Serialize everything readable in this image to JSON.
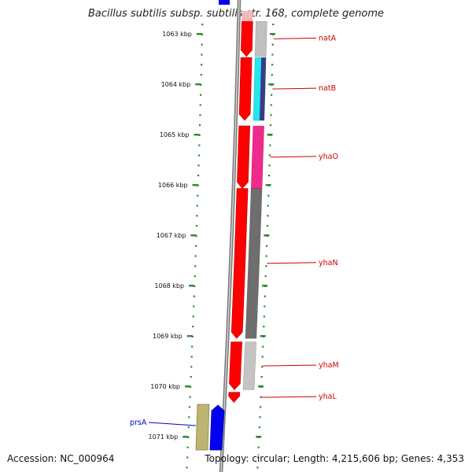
{
  "title": "Bacillus subtilis subsp. subtilis str. 168, complete genome",
  "footer": {
    "accession": "Accession: NC_000964",
    "summary": "Topology: circular; Length: 4,215,606 bp; Genes: 4,353"
  },
  "colors": {
    "feature_red": "#ff0000",
    "tick_green": "#2a8a2a",
    "label_red": "#cc0000",
    "label_blue": "#0000cc"
  },
  "ticks": [
    {
      "label": "1063 kbp",
      "kbp": 1063
    },
    {
      "label": "1064 kbp",
      "kbp": 1064
    },
    {
      "label": "1065 kbp",
      "kbp": 1065
    },
    {
      "label": "1066 kbp",
      "kbp": 1066
    },
    {
      "label": "1067 kbp",
      "kbp": 1067
    },
    {
      "label": "1068 kbp",
      "kbp": 1068
    },
    {
      "label": "1069 kbp",
      "kbp": 1069
    },
    {
      "label": "1070 kbp",
      "kbp": 1070
    },
    {
      "label": "1071 kbp",
      "kbp": 1071
    }
  ],
  "genes": [
    {
      "name": "natA",
      "color": "#c0c0c0",
      "start": 1062.75,
      "end": 1063.45
    },
    {
      "name": "natB",
      "color": "#20e8ee",
      "start": 1063.47,
      "end": 1064.72
    },
    {
      "name": "yhaO",
      "color": "#ee2a8c",
      "start": 1064.83,
      "end": 1066.07
    },
    {
      "name": "yhaN",
      "color": "#6e6e6e",
      "start": 1066.07,
      "end": 1069.05
    },
    {
      "name": "yhaM",
      "color": "#c4c4c4",
      "start": 1069.12,
      "end": 1070.07
    },
    {
      "name": "yhaL",
      "color": "#ff0000",
      "start": 1070.12,
      "end": 1070.32
    },
    {
      "name": "prsA",
      "color": "#bdb473",
      "start": 1070.65,
      "end": 1071.52,
      "side": "left"
    }
  ]
}
